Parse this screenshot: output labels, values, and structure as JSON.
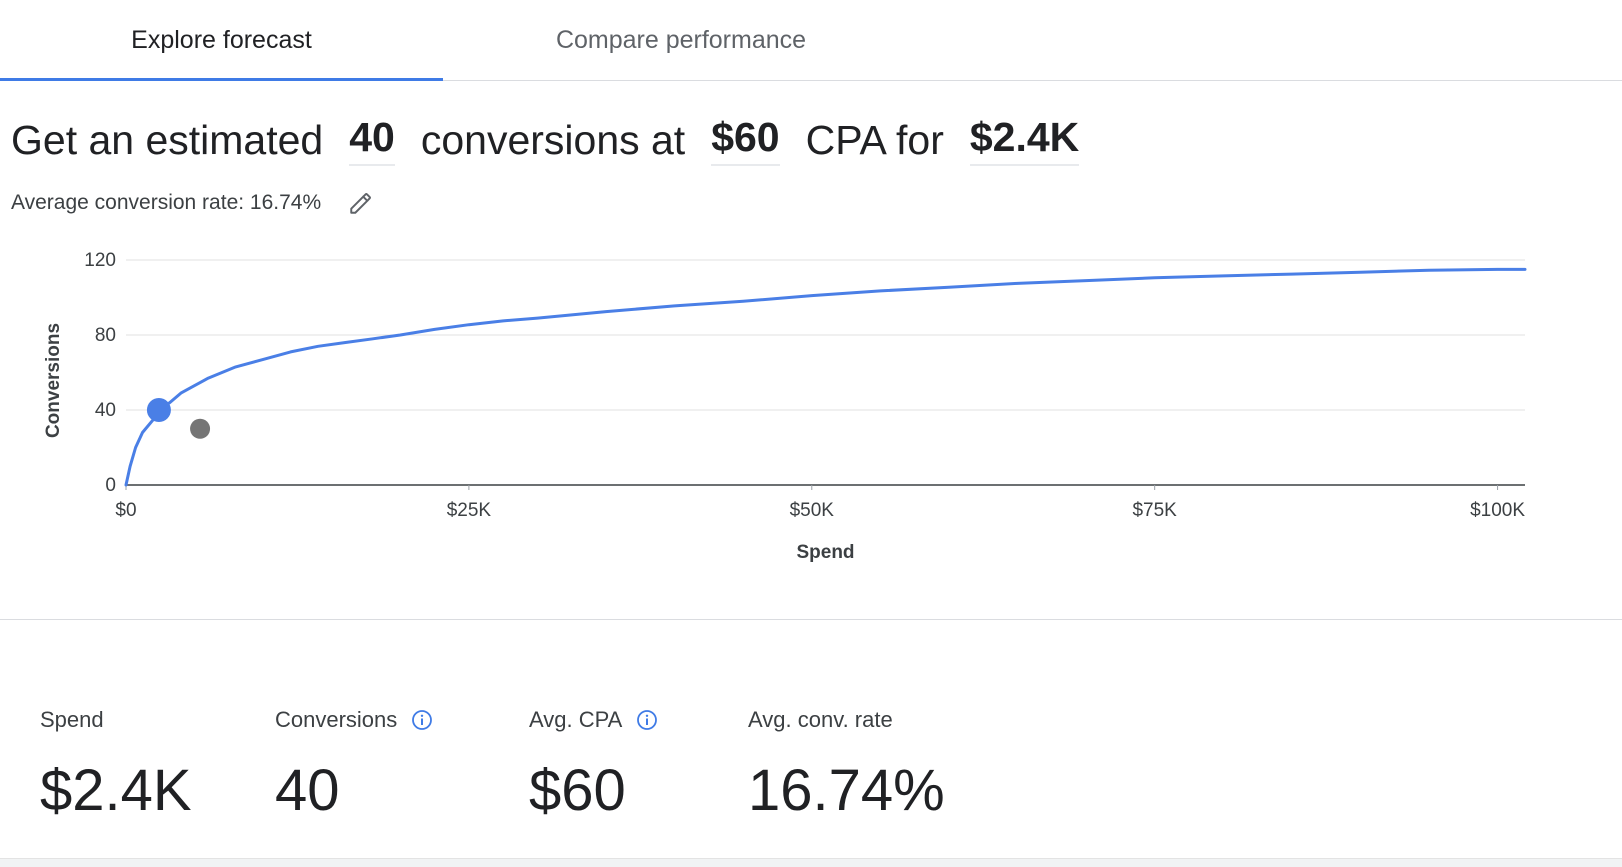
{
  "tabs": [
    {
      "label": "Explore forecast",
      "active": true
    },
    {
      "label": "Compare performance",
      "active": false
    }
  ],
  "headline": {
    "prefix": "Get an estimated",
    "conversions": "40",
    "middle": "conversions at",
    "cpa": "$60",
    "cpa_label": "CPA for",
    "spend": "$2.4K"
  },
  "conversion_rate": {
    "text": "Average conversion rate: 16.74%",
    "edit_icon": "pencil-icon"
  },
  "chart_data": {
    "type": "line",
    "xlabel": "Spend",
    "ylabel": "Conversions",
    "xlim": [
      0,
      102000
    ],
    "ylim": [
      0,
      120
    ],
    "x_ticks": [
      0,
      25000,
      50000,
      75000,
      100000
    ],
    "x_tick_labels": [
      "$0",
      "$25K",
      "$50K",
      "$75K",
      "$100K"
    ],
    "y_ticks": [
      0,
      40,
      80,
      120
    ],
    "y_tick_labels": [
      "0",
      "40",
      "80",
      "120"
    ],
    "grid": true,
    "series": [
      {
        "color": "#4a7fe6",
        "x": [
          0,
          300,
          700,
          1200,
          2000,
          2400,
          3200,
          4000,
          5000,
          6000,
          7000,
          8000,
          10000,
          12000,
          14000,
          16000,
          18000,
          20000,
          22500,
          25000,
          27500,
          30000,
          35000,
          40000,
          45000,
          50000,
          55000,
          60000,
          65000,
          70000,
          75000,
          80000,
          85000,
          90000,
          95000,
          100000,
          102000
        ],
        "y": [
          0,
          10,
          20,
          28,
          35,
          40,
          44,
          49,
          53,
          57,
          60,
          63,
          67,
          71,
          74,
          76,
          78,
          80,
          83,
          85.5,
          87.5,
          89,
          92.5,
          95.5,
          98,
          101,
          103.5,
          105.5,
          107.5,
          109,
          110.5,
          111.5,
          112.5,
          113.5,
          114.5,
          115,
          115
        ]
      }
    ],
    "markers": [
      {
        "x": 2400,
        "y": 40,
        "color": "#4a7fe6"
      },
      {
        "x": 5400,
        "y": 30,
        "color": "#757575"
      }
    ]
  },
  "stats": [
    {
      "label": "Spend",
      "value": "$2.4K",
      "info": false
    },
    {
      "label": "Conversions",
      "value": "40",
      "info": true
    },
    {
      "label": "Avg. CPA",
      "value": "$60",
      "info": true
    },
    {
      "label": "Avg. conv. rate",
      "value": "16.74%",
      "info": false
    }
  ],
  "colors": {
    "accent": "#3f7be6",
    "line": "#4a7fe6",
    "marker_gray": "#757575"
  }
}
